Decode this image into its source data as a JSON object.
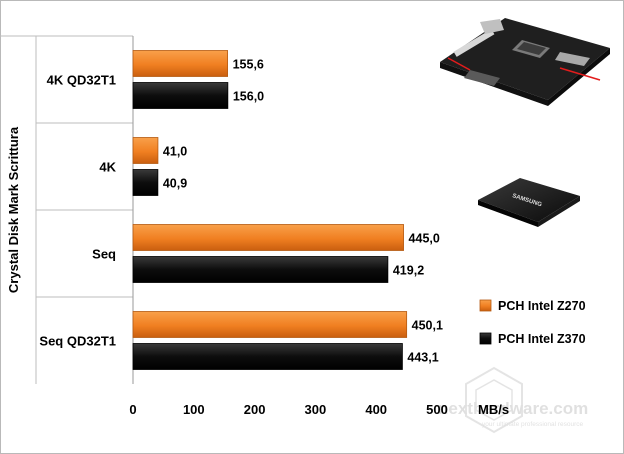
{
  "chart_data": {
    "type": "bar",
    "orientation": "horizontal",
    "title": "",
    "ylabel": "Crystal Disk Mark Scrittura",
    "xlabel": "MB/s",
    "categories": [
      "4K QD32T1",
      "4K",
      "Seq",
      "Seq QD32T1"
    ],
    "series": [
      {
        "name": "PCH Intel Z270",
        "color": "#f07f21",
        "values": [
          155.6,
          41.0,
          445.0,
          450.1
        ],
        "labels": [
          "155,6",
          "41,0",
          "445,0",
          "450,1"
        ]
      },
      {
        "name": "PCH Intel Z370",
        "color": "#111111",
        "values": [
          156.0,
          40.9,
          419.2,
          443.1
        ],
        "labels": [
          "156,0",
          "40,9",
          "419,2",
          "443,1"
        ]
      }
    ],
    "xlim": [
      0,
      500
    ],
    "xticks": [
      "0",
      "100",
      "200",
      "300",
      "400",
      "500"
    ],
    "grid": false,
    "legend_position": "right"
  },
  "images": [
    {
      "name": "motherboard-photo",
      "kind": "product photo"
    },
    {
      "name": "samsung-ssd-photo",
      "kind": "product photo",
      "text": "SAMSUNG"
    }
  ],
  "watermark": {
    "line1": "nexthardware.com",
    "line2": "your ultimate professional resource"
  }
}
